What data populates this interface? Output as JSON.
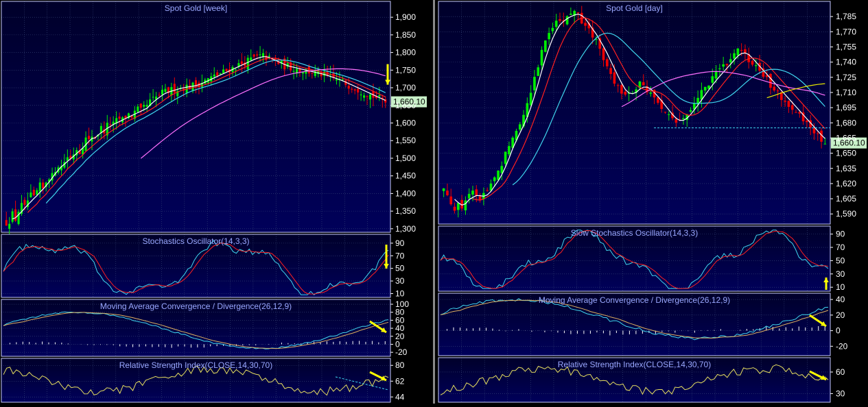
{
  "colors": {
    "background": "#000000",
    "panel_top": "#00002a",
    "panel_bottom": "#00005a",
    "grid": "#3a4a7a",
    "border": "#c8ccff",
    "title": "#9aa8ff",
    "axis_text": "#ffffff",
    "up_candle": "#00ee00",
    "down_candle": "#ee0000",
    "ma_fast": "#ffffff",
    "ma_mid": "#ff2020",
    "ma_slow": "#40d8f0",
    "ma_long": "#ff70ff",
    "ma_day200": "#e8e800",
    "stoch_k": "#40d8f0",
    "stoch_d": "#ff2020",
    "macd_line": "#40d8f0",
    "signal_line": "#e0b060",
    "histogram": "#ffffff",
    "rsi_line": "#e8e060",
    "trendline": "#40d8f0",
    "arrow": "#ffff00",
    "price_label_bg": "#c8f0c8"
  },
  "chart_data": [
    {
      "id": "week",
      "type": "candlestick",
      "title": "Spot Gold [week]",
      "instrument": "Spot Gold",
      "timeframe": "week",
      "last_price_label": "1,660.10",
      "last_price": 1660.1,
      "ylim": [
        1290,
        1945
      ],
      "yticks": [
        1300,
        1350,
        1400,
        1450,
        1500,
        1550,
        1600,
        1650,
        1700,
        1750,
        1800,
        1850,
        1900
      ],
      "ytick_labels": [
        "1,300",
        "1,350",
        "1,400",
        "1,450",
        "1,500",
        "1,550",
        "1,600",
        "1,650",
        "1,700",
        "1,750",
        "1,800",
        "1,850",
        "1,900"
      ],
      "close": [
        1318,
        1325,
        1340,
        1328,
        1352,
        1365,
        1358,
        1380,
        1392,
        1385,
        1405,
        1420,
        1412,
        1435,
        1450,
        1448,
        1470,
        1482,
        1476,
        1492,
        1505,
        1498,
        1515,
        1528,
        1520,
        1540,
        1555,
        1548,
        1565,
        1560,
        1572,
        1585,
        1578,
        1592,
        1600,
        1595,
        1605,
        1612,
        1608,
        1618,
        1625,
        1620,
        1630,
        1638,
        1632,
        1643,
        1650,
        1660,
        1666,
        1672,
        1679,
        1685,
        1688,
        1690,
        1693,
        1696,
        1698,
        1700,
        1702,
        1703,
        1704,
        1706,
        1708,
        1712,
        1716,
        1720,
        1724,
        1728,
        1732,
        1736,
        1740,
        1744,
        1748,
        1752,
        1756,
        1760,
        1764,
        1768,
        1772,
        1776,
        1780,
        1784,
        1786,
        1788,
        1790,
        1786,
        1782,
        1778,
        1774,
        1770,
        1766,
        1762,
        1760,
        1758,
        1756,
        1754,
        1752,
        1750,
        1748,
        1746,
        1744,
        1742,
        1740,
        1738,
        1735,
        1732,
        1729,
        1726,
        1723,
        1720,
        1716,
        1712,
        1708,
        1704,
        1700,
        1696,
        1692,
        1688,
        1684,
        1680,
        1676,
        1672,
        1668,
        1664,
        1660
      ],
      "ma_colors": [
        "ma_fast",
        "ma_mid",
        "ma_slow",
        "ma_long"
      ],
      "annotations": [
        {
          "type": "arrow",
          "direction": "down"
        }
      ]
    },
    {
      "id": "day",
      "type": "candlestick",
      "title": "Spot Gold [day]",
      "instrument": "Spot Gold",
      "timeframe": "day",
      "last_price_label": "1,660.10",
      "last_price": 1660.1,
      "ylim": [
        1580,
        1800
      ],
      "yticks": [
        1590,
        1605,
        1620,
        1635,
        1650,
        1665,
        1680,
        1695,
        1710,
        1725,
        1740,
        1755,
        1770,
        1785
      ],
      "ytick_labels": [
        "1,590",
        "1,605",
        "1,620",
        "1,635",
        "1,650",
        "1,665",
        "1,680",
        "1,695",
        "1,710",
        "1,725",
        "1,740",
        "1,755",
        "1,770",
        "1,785"
      ],
      "close": [
        1615,
        1608,
        1600,
        1595,
        1602,
        1598,
        1605,
        1612,
        1610,
        1606,
        1604,
        1610,
        1615,
        1620,
        1625,
        1630,
        1640,
        1650,
        1660,
        1668,
        1672,
        1680,
        1690,
        1700,
        1712,
        1725,
        1738,
        1750,
        1760,
        1768,
        1775,
        1780,
        1784,
        1782,
        1786,
        1788,
        1790,
        1786,
        1780,
        1776,
        1770,
        1765,
        1760,
        1752,
        1745,
        1738,
        1730,
        1722,
        1715,
        1710,
        1705,
        1708,
        1712,
        1715,
        1718,
        1716,
        1712,
        1708,
        1704,
        1700,
        1695,
        1690,
        1686,
        1682,
        1680,
        1682,
        1686,
        1690,
        1695,
        1700,
        1705,
        1710,
        1715,
        1720,
        1724,
        1728,
        1732,
        1736,
        1740,
        1744,
        1748,
        1752,
        1750,
        1746,
        1742,
        1738,
        1734,
        1730,
        1726,
        1722,
        1718,
        1714,
        1710,
        1706,
        1702,
        1698,
        1694,
        1690,
        1686,
        1682,
        1678,
        1674,
        1670,
        1666,
        1662,
        1660
      ],
      "ma_colors": [
        "ma_fast",
        "ma_mid",
        "ma_slow",
        "ma_long",
        "ma_day200"
      ],
      "annotations": [
        {
          "type": "horizontal_line",
          "y": 1675
        }
      ]
    }
  ],
  "indicators": [
    {
      "chart": "week",
      "id": "stoch",
      "type": "line",
      "title": "Stochastics Oscillator(14,3,3)",
      "yticks": [
        10,
        30,
        50,
        70,
        90
      ],
      "ylim": [
        4,
        104
      ],
      "series": [
        {
          "color": "stoch_k"
        },
        {
          "color": "stoch_d"
        }
      ],
      "annotations": [
        {
          "type": "arrow",
          "direction": "down"
        }
      ]
    },
    {
      "chart": "week",
      "id": "macd",
      "type": "line_histogram",
      "title": "Moving Average Convergence / Divergence(26,12,9)",
      "yticks": [
        -20,
        0,
        20,
        40,
        60,
        80,
        100
      ],
      "ylim": [
        -30,
        112
      ],
      "series": [
        {
          "color": "macd_line"
        },
        {
          "color": "signal_line"
        },
        {
          "color": "histogram",
          "type": "bar"
        }
      ],
      "annotations": [
        {
          "type": "arrow",
          "direction": "down-right"
        }
      ]
    },
    {
      "chart": "week",
      "id": "rsi",
      "type": "line",
      "title": "Relative Strength Index(CLOSE,14,30,70)",
      "yticks": [
        44,
        62,
        80
      ],
      "ylim": [
        38,
        88
      ],
      "series": [
        {
          "color": "rsi_line"
        }
      ],
      "annotations": [
        {
          "type": "arrow",
          "direction": "down-right"
        },
        {
          "type": "trendline"
        }
      ]
    },
    {
      "chart": "day",
      "id": "stoch",
      "type": "line",
      "title": "Slow Stochastics Oscillator(14,3,3)",
      "yticks": [
        10,
        30,
        50,
        70,
        90
      ],
      "ylim": [
        4,
        102
      ],
      "series": [
        {
          "color": "stoch_k"
        },
        {
          "color": "stoch_d"
        }
      ],
      "annotations": [
        {
          "type": "arrow",
          "direction": "up"
        }
      ]
    },
    {
      "chart": "day",
      "id": "macd",
      "type": "line_histogram",
      "title": "Moving Average Convergence / Divergence(26,12,9)",
      "yticks": [
        -20,
        0,
        20,
        40
      ],
      "ylim": [
        -32,
        48
      ],
      "series": [
        {
          "color": "macd_line"
        },
        {
          "color": "signal_line"
        },
        {
          "color": "histogram",
          "type": "bar"
        }
      ],
      "annotations": [
        {
          "type": "arrow",
          "direction": "down-right"
        }
      ]
    },
    {
      "chart": "day",
      "id": "rsi",
      "type": "line",
      "title": "Relative Strength Index(CLOSE,14,30,70)",
      "yticks": [
        30,
        60
      ],
      "ylim": [
        18,
        80
      ],
      "series": [
        {
          "color": "rsi_line"
        }
      ],
      "annotations": [
        {
          "type": "arrow",
          "direction": "down-right"
        }
      ]
    }
  ]
}
